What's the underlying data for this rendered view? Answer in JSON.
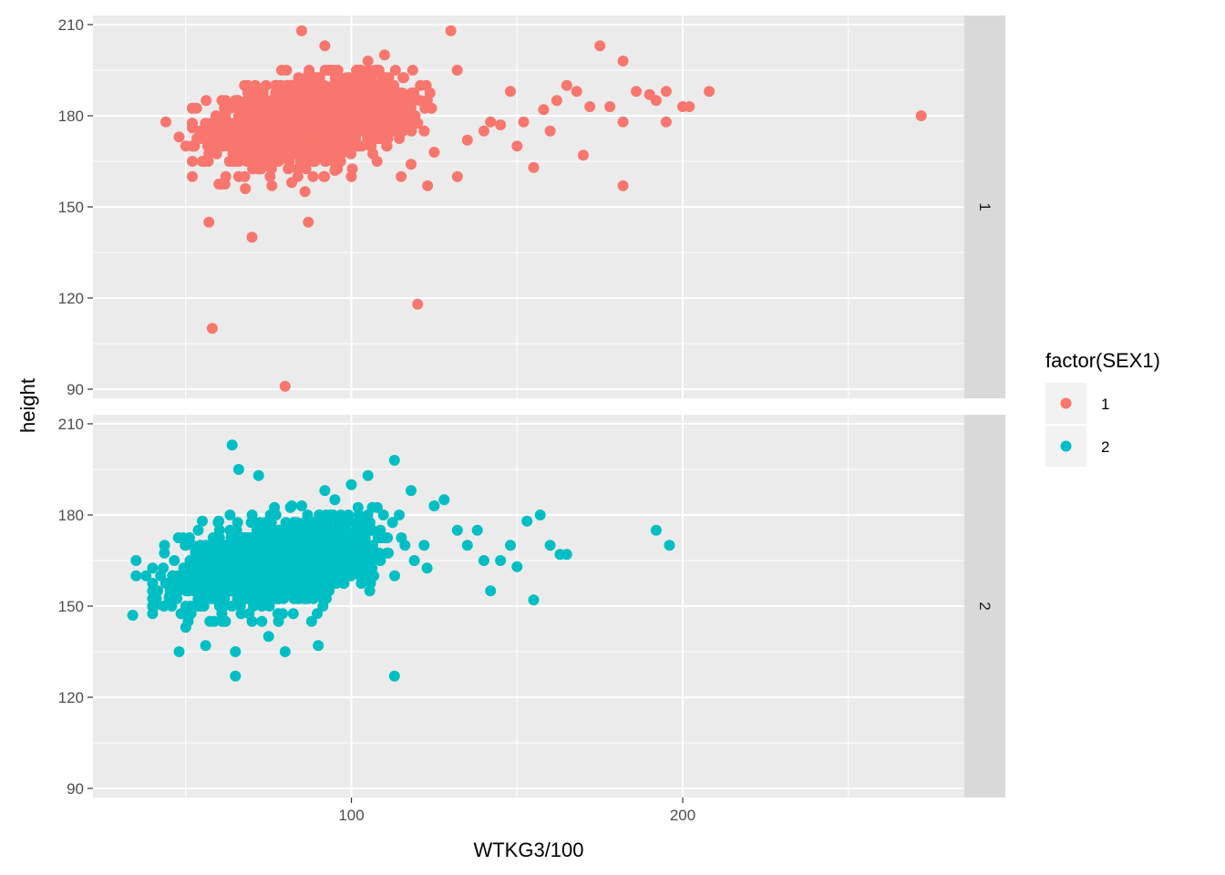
{
  "chart_data": {
    "type": "scatter",
    "xlabel": "WTKG3/100",
    "ylabel": "height",
    "xlim": [
      22,
      285
    ],
    "ylim": [
      87,
      213
    ],
    "x_ticks": [
      100,
      200
    ],
    "x_tick_labels": [
      "100",
      "200"
    ],
    "x_minor_gridlines": [
      50,
      150,
      250
    ],
    "y_ticks": [
      90,
      120,
      150,
      180,
      210
    ],
    "y_tick_labels": [
      "90",
      "120",
      "150",
      "180",
      "210"
    ],
    "grid": true,
    "facet_by": "SEX1",
    "facets": [
      {
        "label": "1",
        "color": "#F8766D",
        "cluster": {
          "x_center": 88,
          "x_spread": 14,
          "x_min": 52,
          "x_max": 140,
          "y_center": 179,
          "y_spread": 6.5,
          "y_min": 158,
          "y_max": 196,
          "corr": 0.35,
          "n": 1800
        },
        "points": [
          [
            44,
            178
          ],
          [
            48,
            173
          ],
          [
            50,
            170
          ],
          [
            52,
            176
          ],
          [
            55,
            165
          ],
          [
            57,
            145
          ],
          [
            58,
            110
          ],
          [
            62,
            185
          ],
          [
            66,
            160
          ],
          [
            68,
            156
          ],
          [
            70,
            140
          ],
          [
            72,
            168
          ],
          [
            76,
            157
          ],
          [
            80,
            91
          ],
          [
            82,
            158
          ],
          [
            85,
            208
          ],
          [
            86,
            155
          ],
          [
            87,
            145
          ],
          [
            92,
            203
          ],
          [
            95,
            162
          ],
          [
            100,
            160
          ],
          [
            105,
            198
          ],
          [
            110,
            200
          ],
          [
            115,
            160
          ],
          [
            118,
            164
          ],
          [
            120,
            118
          ],
          [
            123,
            157
          ],
          [
            125,
            168
          ],
          [
            130,
            208
          ],
          [
            132,
            160
          ],
          [
            135,
            172
          ],
          [
            140,
            175
          ],
          [
            142,
            178
          ],
          [
            145,
            177
          ],
          [
            148,
            188
          ],
          [
            150,
            170
          ],
          [
            152,
            178
          ],
          [
            155,
            163
          ],
          [
            158,
            182
          ],
          [
            160,
            175
          ],
          [
            162,
            185
          ],
          [
            165,
            190
          ],
          [
            168,
            188
          ],
          [
            170,
            167
          ],
          [
            172,
            183
          ],
          [
            175,
            203
          ],
          [
            178,
            183
          ],
          [
            182,
            178
          ],
          [
            182,
            198
          ],
          [
            182,
            157
          ],
          [
            186,
            188
          ],
          [
            190,
            187
          ],
          [
            192,
            185
          ],
          [
            195,
            188
          ],
          [
            195,
            178
          ],
          [
            200,
            183
          ],
          [
            202,
            183
          ],
          [
            208,
            188
          ],
          [
            272,
            180
          ]
        ]
      },
      {
        "label": "2",
        "color": "#00BFC4",
        "cluster": {
          "x_center": 78,
          "x_spread": 14,
          "x_min": 40,
          "x_max": 130,
          "y_center": 164,
          "y_spread": 6.5,
          "y_min": 144,
          "y_max": 183,
          "corr": 0.35,
          "n": 1600
        },
        "points": [
          [
            34,
            147
          ],
          [
            35,
            165
          ],
          [
            35,
            160
          ],
          [
            38,
            160
          ],
          [
            40,
            150
          ],
          [
            45,
            153
          ],
          [
            46,
            160
          ],
          [
            48,
            135
          ],
          [
            50,
            143
          ],
          [
            52,
            165
          ],
          [
            55,
            178
          ],
          [
            56,
            137
          ],
          [
            58,
            168
          ],
          [
            60,
            178
          ],
          [
            62,
            145
          ],
          [
            64,
            203
          ],
          [
            65,
            127
          ],
          [
            65,
            135
          ],
          [
            66,
            195
          ],
          [
            70,
            145
          ],
          [
            72,
            193
          ],
          [
            75,
            140
          ],
          [
            78,
            145
          ],
          [
            80,
            135
          ],
          [
            82,
            183
          ],
          [
            85,
            183
          ],
          [
            88,
            145
          ],
          [
            90,
            137
          ],
          [
            92,
            188
          ],
          [
            95,
            185
          ],
          [
            100,
            190
          ],
          [
            105,
            193
          ],
          [
            113,
            198
          ],
          [
            113,
            127
          ],
          [
            118,
            188
          ],
          [
            125,
            183
          ],
          [
            128,
            185
          ],
          [
            132,
            175
          ],
          [
            135,
            170
          ],
          [
            138,
            175
          ],
          [
            140,
            165
          ],
          [
            142,
            155
          ],
          [
            145,
            165
          ],
          [
            148,
            170
          ],
          [
            150,
            163
          ],
          [
            153,
            178
          ],
          [
            155,
            152
          ],
          [
            157,
            180
          ],
          [
            160,
            170
          ],
          [
            163,
            167
          ],
          [
            165,
            167
          ],
          [
            192,
            175
          ],
          [
            196,
            170
          ]
        ]
      }
    ],
    "legend": {
      "title": "factor(SEX1)",
      "position": "right",
      "entries": [
        {
          "label": "1",
          "color": "#F8766D"
        },
        {
          "label": "2",
          "color": "#00BFC4"
        }
      ]
    }
  }
}
